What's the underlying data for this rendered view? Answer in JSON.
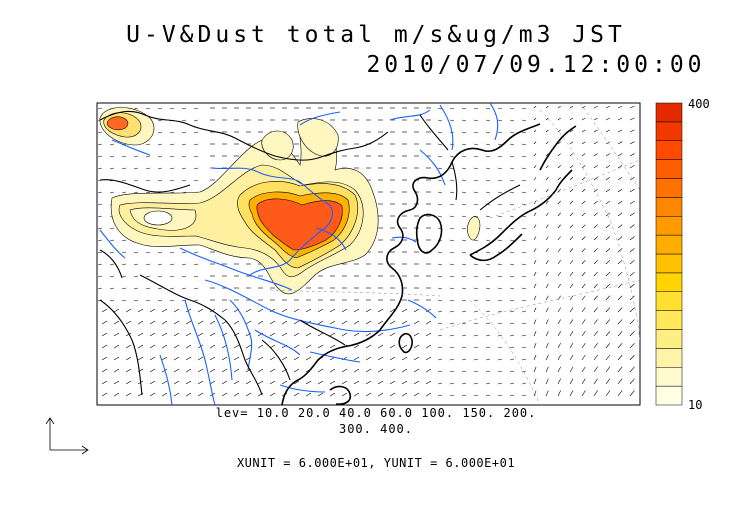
{
  "title": {
    "line1": "U-V&Dust total m/s&ug/m3 JST",
    "line2": "2010/07/09.12:00:00"
  },
  "contour_levels": {
    "line1": "lev= 10.0 20.0 40.0 60.0 100. 150. 200.",
    "line2": "300. 400."
  },
  "colorbar": {
    "max_label": "400",
    "min_label": "10",
    "colors": [
      "#ffffe6",
      "#fffacd",
      "#fff3a8",
      "#ffee82",
      "#ffe85a",
      "#ffe030",
      "#ffd400",
      "#ffc200",
      "#ffae00",
      "#ff9a00",
      "#ff8600",
      "#ff7200",
      "#ff5e00",
      "#ff4a00",
      "#f23a00",
      "#e62a00"
    ]
  },
  "units": "XUNIT = 6.000E+01, YUNIT = 6.000E+01",
  "colors": {
    "rivers": "#1a5fff",
    "coast": "#000000",
    "dust_core": "#ff5a1a"
  }
}
